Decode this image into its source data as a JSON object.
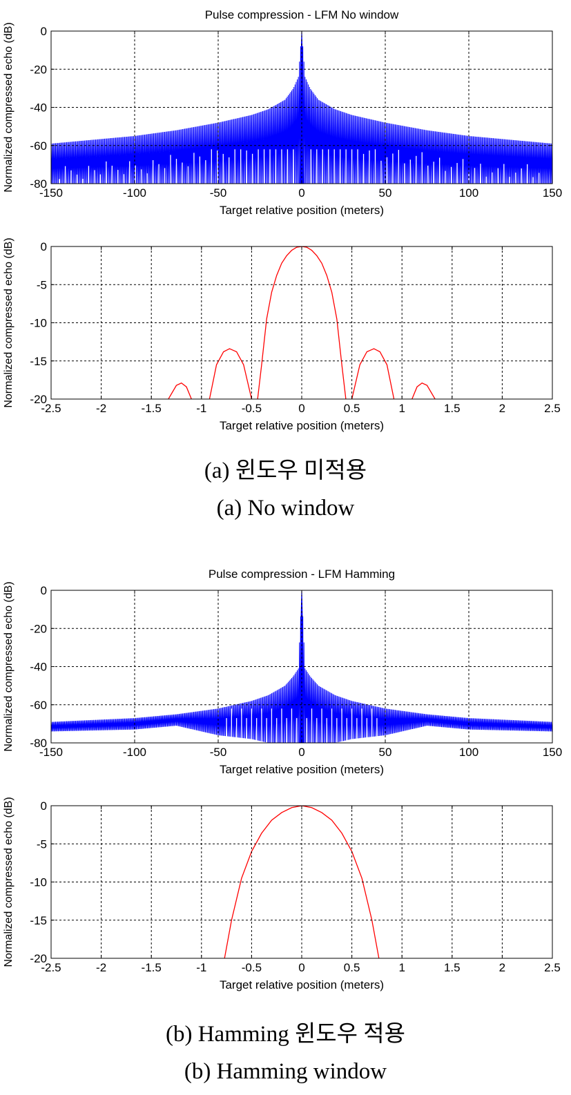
{
  "figure_a": {
    "title": "Pulse compression - LFM  No window",
    "caption_kr": "(a)  윈도우 미적용",
    "caption_en": "(a)  No window"
  },
  "figure_b": {
    "title": "Pulse compression - LFM Hamming",
    "caption_kr": "(b)  Hamming 윈도우 적용",
    "caption_en": "(b)  Hamming window"
  },
  "colors": {
    "wide": "#0000ff",
    "zoom": "#ff0000",
    "grid": "#000000"
  },
  "chart_data": [
    {
      "type": "line",
      "title": "Pulse compression - LFM  No window",
      "xlabel": "Target relative position (meters)",
      "ylabel": "Normalized compressed echo (dB)",
      "xlim": [
        -150,
        150
      ],
      "ylim": [
        -80,
        0
      ],
      "xticks": [
        -150,
        -100,
        -50,
        0,
        50,
        100,
        150
      ],
      "yticks": [
        -80,
        -60,
        -40,
        -20,
        0
      ],
      "grid": true,
      "envelope_x": [
        -150,
        -100,
        -75,
        -50,
        -30,
        -20,
        -10,
        -5,
        -2,
        0,
        2,
        5,
        10,
        20,
        30,
        50,
        75,
        100,
        150
      ],
      "envelope_y": [
        -59,
        -55,
        -52,
        -48,
        -44,
        -41,
        -36,
        -30,
        -24,
        0,
        -24,
        -30,
        -36,
        -41,
        -44,
        -48,
        -52,
        -55,
        -59
      ],
      "floor_y": -80,
      "series": [
        {
          "values": []
        }
      ]
    },
    {
      "type": "line",
      "title": "",
      "xlabel": "Target relative position (meters)",
      "ylabel": "Normalized compressed echo (dB)",
      "xlim": [
        -2.5,
        2.5
      ],
      "ylim": [
        -20,
        0
      ],
      "xticks": [
        -2.5,
        -2,
        -1.5,
        -1,
        -0.5,
        0,
        0.5,
        1,
        1.5,
        2,
        2.5
      ],
      "yticks": [
        -20,
        -15,
        -10,
        -5,
        0
      ],
      "grid": true,
      "segments": [
        {
          "x": [
            -1.33,
            -1.25,
            -1.2,
            -1.15,
            -1.1
          ],
          "y": [
            -20,
            -18.2,
            -17.9,
            -18.4,
            -20
          ]
        },
        {
          "x": [
            -0.92,
            -0.85,
            -0.78,
            -0.72,
            -0.65,
            -0.58,
            -0.5
          ],
          "y": [
            -20,
            -15.5,
            -13.8,
            -13.4,
            -13.8,
            -15.5,
            -20
          ]
        },
        {
          "x": [
            -0.44,
            -0.4,
            -0.35,
            -0.3,
            -0.25,
            -0.2,
            -0.15,
            -0.1,
            -0.05,
            0,
            0.05,
            0.1,
            0.15,
            0.2,
            0.25,
            0.3,
            0.35,
            0.4,
            0.44
          ],
          "y": [
            -20,
            -15.5,
            -9.5,
            -6.0,
            -3.8,
            -2.2,
            -1.2,
            -0.5,
            -0.1,
            0,
            -0.1,
            -0.5,
            -1.2,
            -2.2,
            -3.8,
            -6.0,
            -9.5,
            -15.5,
            -20
          ]
        },
        {
          "x": [
            0.5,
            0.58,
            0.65,
            0.72,
            0.78,
            0.85,
            0.92
          ],
          "y": [
            -20,
            -15.5,
            -13.8,
            -13.4,
            -13.8,
            -15.5,
            -20
          ]
        },
        {
          "x": [
            1.1,
            1.15,
            1.2,
            1.25,
            1.33
          ],
          "y": [
            -20,
            -18.4,
            -17.9,
            -18.2,
            -20
          ]
        }
      ]
    },
    {
      "type": "line",
      "title": "Pulse compression - LFM Hamming",
      "xlabel": "Target relative position (meters)",
      "ylabel": "Normalized compressed echo (dB)",
      "xlim": [
        -150,
        150
      ],
      "ylim": [
        -80,
        0
      ],
      "xticks": [
        -150,
        -100,
        -50,
        0,
        50,
        100,
        150
      ],
      "yticks": [
        -80,
        -60,
        -40,
        -20,
        0
      ],
      "grid": true,
      "envelope_x": [
        -150,
        -100,
        -75,
        -50,
        -30,
        -20,
        -10,
        -5,
        -2,
        0,
        2,
        5,
        10,
        20,
        30,
        50,
        75,
        100,
        150
      ],
      "envelope_y": [
        -69,
        -67,
        -65,
        -62,
        -58,
        -55,
        -50,
        -45,
        -41,
        0,
        -41,
        -45,
        -50,
        -55,
        -58,
        -62,
        -65,
        -67,
        -69
      ],
      "band_bottom_y": [
        -74,
        -73,
        -71,
        -76,
        -78,
        -80,
        -80,
        -80,
        -80,
        -80,
        -80,
        -80,
        -80,
        -80,
        -78,
        -76,
        -71,
        -73,
        -74
      ],
      "series": [
        {
          "values": []
        }
      ]
    },
    {
      "type": "line",
      "title": "",
      "xlabel": "Target relative position (meters)",
      "ylabel": "Normalized compressed echo (dB)",
      "xlim": [
        -2.5,
        2.5
      ],
      "ylim": [
        -20,
        0
      ],
      "xticks": [
        -2.5,
        -2,
        -1.5,
        -1,
        -0.5,
        0,
        0.5,
        1,
        1.5,
        2,
        2.5
      ],
      "yticks": [
        -20,
        -15,
        -10,
        -5,
        0
      ],
      "grid": true,
      "segments": [
        {
          "x": [
            -0.77,
            -0.7,
            -0.6,
            -0.5,
            -0.4,
            -0.3,
            -0.2,
            -0.1,
            0,
            0.1,
            0.2,
            0.3,
            0.4,
            0.5,
            0.6,
            0.7,
            0.77
          ],
          "y": [
            -20,
            -15.0,
            -9.5,
            -6.0,
            -3.6,
            -1.9,
            -0.9,
            -0.25,
            0,
            -0.25,
            -0.9,
            -1.9,
            -3.6,
            -6.0,
            -9.5,
            -15.0,
            -20
          ]
        }
      ]
    }
  ]
}
